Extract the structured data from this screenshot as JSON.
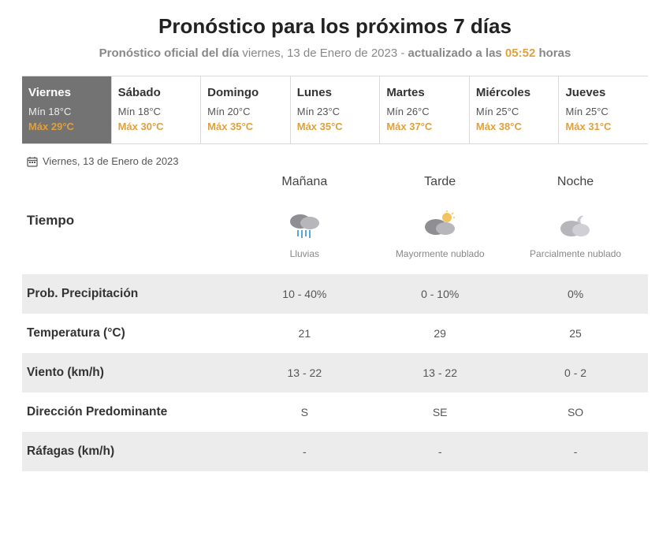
{
  "title": "Pronóstico para los próximos 7 días",
  "subtitle": {
    "prefix_bold": "Pronóstico oficial del día",
    "date": "viernes, 13 de Enero de 2023",
    "sep": " - ",
    "updated_bold": "actualizado a las",
    "time": "05:52",
    "suffix_bold": "horas"
  },
  "days": [
    {
      "name": "Viernes",
      "min": "Mín 18°C",
      "max": "Máx 29°C",
      "active": true
    },
    {
      "name": "Sábado",
      "min": "Mín 18°C",
      "max": "Máx 30°C",
      "active": false
    },
    {
      "name": "Domingo",
      "min": "Mín 20°C",
      "max": "Máx 35°C",
      "active": false
    },
    {
      "name": "Lunes",
      "min": "Mín 23°C",
      "max": "Máx 35°C",
      "active": false
    },
    {
      "name": "Martes",
      "min": "Mín 26°C",
      "max": "Máx 37°C",
      "active": false
    },
    {
      "name": "Miércoles",
      "min": "Mín 25°C",
      "max": "Máx 38°C",
      "active": false
    },
    {
      "name": "Jueves",
      "min": "Mín 25°C",
      "max": "Máx 31°C",
      "active": false
    }
  ],
  "selected_date": "Viernes, 13 de Enero de 2023",
  "periods": {
    "morning": "Mañana",
    "afternoon": "Tarde",
    "night": "Noche"
  },
  "tiempo": {
    "label": "Tiempo",
    "cells": [
      {
        "icon": "rain",
        "desc": "Lluvias"
      },
      {
        "icon": "mostly-cloudy",
        "desc": "Mayormente nublado"
      },
      {
        "icon": "partly-cloudy-night",
        "desc": "Parcialmente nublado"
      }
    ]
  },
  "rows": [
    {
      "label": "Prob. Precipitación",
      "stripe": true,
      "vals": [
        "10 - 40%",
        "0 - 10%",
        "0%"
      ]
    },
    {
      "label": "Temperatura (°C)",
      "stripe": false,
      "vals": [
        "21",
        "29",
        "25"
      ]
    },
    {
      "label": "Viento (km/h)",
      "stripe": true,
      "vals": [
        "13 - 22",
        "13 - 22",
        "0 - 2"
      ]
    },
    {
      "label": "Dirección Predominante",
      "stripe": false,
      "vals": [
        "S",
        "SE",
        "SO"
      ]
    },
    {
      "label": "Ráfagas (km/h)",
      "stripe": true,
      "vals": [
        "-",
        "-",
        "-"
      ]
    }
  ],
  "colors": {
    "accent_orange": "#e0a03e",
    "active_tab_bg": "#737373",
    "stripe_bg": "#ececec",
    "border": "#d9d9d9",
    "muted_text": "#888888"
  }
}
